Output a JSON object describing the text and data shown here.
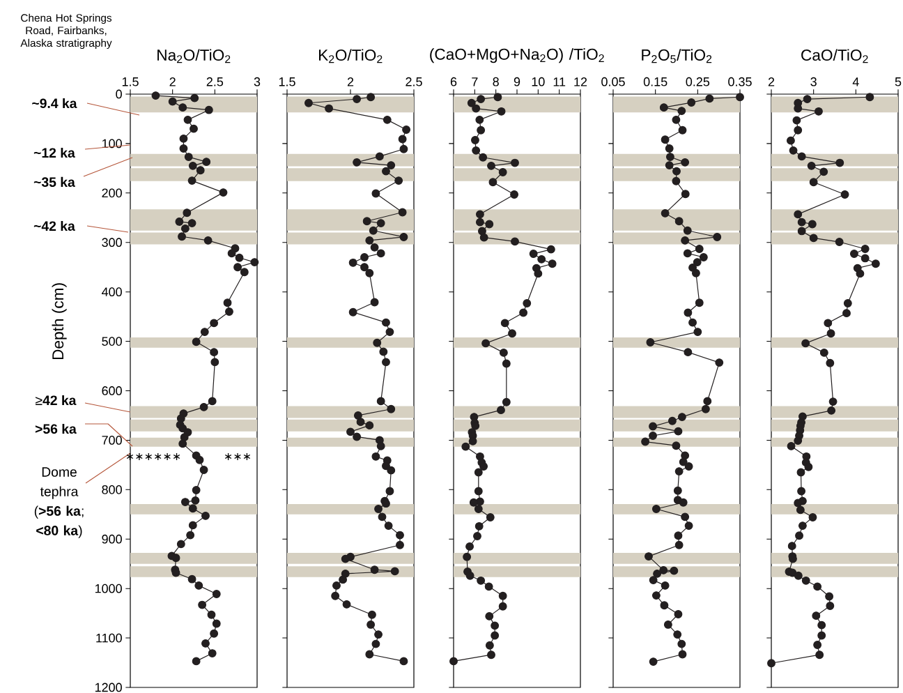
{
  "chart_data": [
    {
      "type": "line",
      "title": "Na$_{2}$O/TiO$_{2}$",
      "ylabel": "Depth (cm)",
      "xlim": [
        1.5,
        3
      ],
      "xticks": [
        1.5,
        2,
        2.5,
        3
      ],
      "ylim": [
        1200,
        0
      ],
      "yticks": [
        0,
        100,
        200,
        300,
        400,
        500,
        600,
        700,
        800,
        900,
        1000,
        1100,
        1200
      ],
      "marker": "circle",
      "line_style": "solid",
      "series": [
        {
          "color": "#231f20",
          "x": [
            1.8,
            2.26,
            2.0,
            2.12,
            2.43,
            2.18,
            2.25,
            2.13,
            2.13,
            2.19,
            2.4,
            2.24,
            2.33,
            2.23,
            2.6,
            2.17,
            2.08,
            2.23,
            2.15,
            2.11,
            2.42,
            2.74,
            2.7,
            2.79,
            2.97,
            2.77,
            2.85,
            2.65,
            2.67,
            2.49,
            2.38,
            2.28,
            2.49,
            2.5,
            2.47,
            2.37,
            2.13,
            2.1,
            2.09,
            2.12,
            2.18,
            2.14,
            2.12,
            2.28,
            2.32,
            2.37,
            2.28,
            2.27,
            2.15,
            2.24,
            2.39,
            2.24,
            2.21,
            2.1,
            1.99,
            2.04,
            2.03,
            2.04,
            2.23,
            2.31,
            2.52,
            2.35,
            2.46,
            2.52,
            2.49,
            2.39,
            2.47,
            2.28
          ],
          "values": [
            3,
            8,
            15,
            27,
            32,
            52,
            70,
            90,
            110,
            127,
            137,
            145,
            154,
            175,
            199,
            240,
            258,
            261,
            272,
            288,
            296,
            312,
            322,
            331,
            340,
            350,
            360,
            422,
            440,
            463,
            481,
            501,
            522,
            542,
            621,
            633,
            646,
            656,
            669,
            676,
            684,
            694,
            707,
            731,
            740,
            760,
            801,
            822,
            825,
            838,
            853,
            872,
            892,
            910,
            934,
            938,
            962,
            968,
            981,
            994,
            1011,
            1033,
            1053,
            1071,
            1091,
            1111,
            1131,
            1147
          ]
        }
      ],
      "bands": [
        {
          "axis": "y",
          "from": 5,
          "to": 37,
          "color": "#d6d0c1"
        },
        {
          "axis": "y",
          "from": 121,
          "to": 146,
          "color": "#d6d0c1"
        },
        {
          "axis": "y",
          "from": 150,
          "to": 176,
          "color": "#d6d0c1"
        },
        {
          "axis": "y",
          "from": 233,
          "to": 276,
          "color": "#d6d0c1"
        },
        {
          "axis": "y",
          "from": 280,
          "to": 304,
          "color": "#d6d0c1"
        },
        {
          "axis": "y",
          "from": 492,
          "to": 513,
          "color": "#d6d0c1"
        },
        {
          "axis": "y",
          "from": 631,
          "to": 655,
          "color": "#d6d0c1"
        },
        {
          "axis": "y",
          "from": 658,
          "to": 682,
          "color": "#d6d0c1"
        },
        {
          "axis": "y",
          "from": 695,
          "to": 713,
          "color": "#d6d0c1"
        },
        {
          "axis": "y",
          "from": 829,
          "to": 850,
          "color": "#d6d0c1"
        },
        {
          "axis": "y",
          "from": 928,
          "to": 950,
          "color": "#d6d0c1"
        },
        {
          "axis": "y",
          "from": 955,
          "to": 977,
          "color": "#d6d0c1"
        }
      ],
      "annotations": [
        "Chena Hot Springs Road, Fairbanks, Alaska stratigraphy",
        "**~9.4 ka**",
        "**~12 ka**",
        "**~35 ka**",
        "**~42 ka**",
        {
          "text": "≥**42 ka**",
          "x": 1.5,
          "y": 643
        },
        "**>56 ka**",
        "Dome tephra (**>56 ka**; **<80 ka**)",
        "∗∗∗∗∗∗",
        "∗∗∗"
      ]
    },
    {
      "type": "line",
      "title": "K$_{2}$O/TiO$_{2}$",
      "xlim": [
        1.5,
        2.5
      ],
      "xticks": [
        1.5,
        2,
        2.5
      ],
      "ylim": [
        1200,
        0
      ],
      "yticks": [
        0,
        100,
        200,
        300,
        400,
        500,
        600,
        700,
        800,
        900,
        1000,
        1100,
        1200
      ],
      "tick_labels": "x",
      "marker": "circle",
      "line_style": "solid",
      "series": [
        {
          "color": "#231f20",
          "x": [
            2.16,
            2.05,
            1.67,
            1.83,
            2.29,
            2.44,
            2.41,
            2.42,
            2.23,
            2.05,
            2.32,
            2.28,
            2.38,
            2.2,
            2.41,
            2.13,
            2.24,
            2.18,
            2.42,
            2.15,
            2.19,
            2.24,
            2.11,
            2.02,
            2.11,
            2.15,
            2.19,
            2.02,
            2.28,
            2.31,
            2.21,
            2.26,
            2.28,
            2.24,
            2.32,
            2.06,
            2.08,
            2.15,
            2.0,
            2.05,
            2.23,
            2.24,
            2.2,
            2.29,
            2.28,
            2.32,
            2.31,
            2.27,
            2.28,
            2.22,
            2.25,
            2.3,
            2.39,
            2.39,
            2.0,
            1.96,
            2.19,
            2.35,
            1.96,
            1.94,
            1.89,
            1.88,
            1.97,
            2.17,
            2.16,
            2.22,
            2.2,
            2.15,
            2.42
          ],
          "values": [
            6,
            10,
            18,
            29,
            52,
            72,
            91,
            111,
            126,
            138,
            144,
            156,
            175,
            201,
            239,
            257,
            261,
            276,
            289,
            296,
            310,
            322,
            330,
            341,
            350,
            362,
            421,
            441,
            462,
            481,
            503,
            521,
            542,
            621,
            637,
            650,
            663,
            670,
            683,
            693,
            700,
            712,
            733,
            741,
            752,
            761,
            803,
            823,
            828,
            839,
            855,
            873,
            892,
            912,
            936,
            940,
            962,
            965,
            970,
            982,
            994,
            1015,
            1032,
            1053,
            1073,
            1093,
            1112,
            1133,
            1147
          ]
        }
      ],
      "bands": [
        {
          "axis": "y",
          "from": 5,
          "to": 37,
          "color": "#d6d0c1"
        },
        {
          "axis": "y",
          "from": 121,
          "to": 146,
          "color": "#d6d0c1"
        },
        {
          "axis": "y",
          "from": 150,
          "to": 176,
          "color": "#d6d0c1"
        },
        {
          "axis": "y",
          "from": 233,
          "to": 276,
          "color": "#d6d0c1"
        },
        {
          "axis": "y",
          "from": 280,
          "to": 304,
          "color": "#d6d0c1"
        },
        {
          "axis": "y",
          "from": 492,
          "to": 513,
          "color": "#d6d0c1"
        },
        {
          "axis": "y",
          "from": 631,
          "to": 655,
          "color": "#d6d0c1"
        },
        {
          "axis": "y",
          "from": 658,
          "to": 682,
          "color": "#d6d0c1"
        },
        {
          "axis": "y",
          "from": 695,
          "to": 713,
          "color": "#d6d0c1"
        },
        {
          "axis": "y",
          "from": 829,
          "to": 850,
          "color": "#d6d0c1"
        },
        {
          "axis": "y",
          "from": 928,
          "to": 950,
          "color": "#d6d0c1"
        },
        {
          "axis": "y",
          "from": 955,
          "to": 977,
          "color": "#d6d0c1"
        }
      ]
    },
    {
      "type": "line",
      "title": "(CaO+MgO+Na$_{2}$O) /TiO$_{2}$",
      "xlim": [
        6,
        12
      ],
      "xticks": [
        6,
        7,
        8,
        9,
        10,
        11,
        12
      ],
      "ylim": [
        1200,
        0
      ],
      "yticks": [
        0,
        100,
        200,
        300,
        400,
        500,
        600,
        700,
        800,
        900,
        1000,
        1100,
        1200
      ],
      "tick_labels": "x",
      "marker": "circle",
      "line_style": "solid",
      "series": [
        {
          "color": "#231f20",
          "x": [
            8.09,
            7.29,
            6.85,
            7.06,
            8.26,
            7.23,
            7.29,
            7.02,
            7.06,
            7.39,
            8.9,
            7.78,
            8.33,
            7.86,
            8.87,
            7.25,
            7.25,
            7.69,
            7.35,
            7.44,
            8.9,
            10.61,
            9.78,
            10.16,
            10.67,
            9.92,
            10.0,
            9.47,
            9.3,
            8.43,
            8.77,
            7.52,
            8.37,
            8.5,
            8.5,
            8.24,
            6.97,
            7.0,
            7.03,
            6.87,
            6.91,
            6.91,
            6.57,
            7.25,
            7.33,
            7.42,
            7.18,
            7.18,
            7.25,
            6.95,
            7.18,
            7.74,
            7.21,
            7.12,
            6.76,
            6.63,
            6.66,
            6.78,
            7.29,
            7.67,
            8.33,
            8.33,
            7.69,
            7.95,
            7.95,
            7.71,
            7.78,
            6.0
          ],
          "values": [
            6,
            10,
            18,
            29,
            35,
            52,
            73,
            93,
            114,
            128,
            139,
            145,
            158,
            178,
            203,
            243,
            259,
            263,
            277,
            290,
            298,
            314,
            323,
            334,
            343,
            352,
            363,
            423,
            442,
            463,
            484,
            504,
            523,
            545,
            623,
            639,
            653,
            665,
            671,
            684,
            691,
            702,
            713,
            733,
            745,
            753,
            765,
            803,
            824,
            826,
            839,
            856,
            874,
            894,
            915,
            936,
            966,
            974,
            984,
            996,
            1015,
            1036,
            1056,
            1075,
            1095,
            1115,
            1134,
            1147
          ]
        }
      ],
      "bands": [
        {
          "axis": "y",
          "from": 5,
          "to": 37,
          "color": "#d6d0c1"
        },
        {
          "axis": "y",
          "from": 121,
          "to": 146,
          "color": "#d6d0c1"
        },
        {
          "axis": "y",
          "from": 150,
          "to": 176,
          "color": "#d6d0c1"
        },
        {
          "axis": "y",
          "from": 233,
          "to": 276,
          "color": "#d6d0c1"
        },
        {
          "axis": "y",
          "from": 280,
          "to": 304,
          "color": "#d6d0c1"
        },
        {
          "axis": "y",
          "from": 492,
          "to": 513,
          "color": "#d6d0c1"
        },
        {
          "axis": "y",
          "from": 631,
          "to": 655,
          "color": "#d6d0c1"
        },
        {
          "axis": "y",
          "from": 658,
          "to": 682,
          "color": "#d6d0c1"
        },
        {
          "axis": "y",
          "from": 695,
          "to": 713,
          "color": "#d6d0c1"
        },
        {
          "axis": "y",
          "from": 829,
          "to": 850,
          "color": "#d6d0c1"
        },
        {
          "axis": "y",
          "from": 928,
          "to": 950,
          "color": "#d6d0c1"
        },
        {
          "axis": "y",
          "from": 955,
          "to": 977,
          "color": "#d6d0c1"
        }
      ]
    },
    {
      "type": "line",
      "title": "P$_{2}$O$_{5}$/TiO$_{2}$",
      "xlim": [
        0.05,
        0.35
      ],
      "xticks": [
        0.05,
        0.15,
        0.25,
        0.35
      ],
      "ylim": [
        1200,
        0
      ],
      "yticks": [
        0,
        100,
        200,
        300,
        400,
        500,
        600,
        700,
        800,
        900,
        1000,
        1100,
        1200
      ],
      "tick_labels": "x",
      "marker": "circle",
      "line_style": "solid",
      "series": [
        {
          "color": "#231f20",
          "x": [
            0.35,
            0.278,
            0.235,
            0.17,
            0.212,
            0.199,
            0.214,
            0.173,
            0.183,
            0.185,
            0.22,
            0.183,
            0.2,
            0.199,
            0.221,
            0.173,
            0.206,
            0.226,
            0.296,
            0.22,
            0.254,
            0.226,
            0.264,
            0.249,
            0.238,
            0.246,
            0.254,
            0.227,
            0.238,
            0.25,
            0.138,
            0.227,
            0.301,
            0.273,
            0.269,
            0.213,
            0.19,
            0.144,
            0.204,
            0.144,
            0.126,
            0.199,
            0.22,
            0.216,
            0.229,
            0.206,
            0.203,
            0.203,
            0.216,
            0.152,
            0.22,
            0.229,
            0.204,
            0.206,
            0.134,
            0.169,
            0.194,
            0.154,
            0.145,
            0.173,
            0.152,
            0.171,
            0.204,
            0.18,
            0.202,
            0.212,
            0.214,
            0.145
          ],
          "values": [
            6,
            9,
            17,
            27,
            34,
            52,
            73,
            92,
            110,
            127,
            138,
            144,
            156,
            176,
            202,
            241,
            257,
            276,
            289,
            296,
            313,
            322,
            330,
            340,
            351,
            362,
            422,
            442,
            462,
            481,
            502,
            522,
            543,
            621,
            637,
            653,
            661,
            672,
            682,
            691,
            703,
            711,
            731,
            744,
            753,
            763,
            802,
            821,
            826,
            839,
            855,
            873,
            893,
            912,
            935,
            963,
            964,
            970,
            983,
            994,
            1014,
            1034,
            1052,
            1073,
            1093,
            1112,
            1133,
            1148
          ]
        }
      ],
      "bands": [
        {
          "axis": "y",
          "from": 5,
          "to": 37,
          "color": "#d6d0c1"
        },
        {
          "axis": "y",
          "from": 121,
          "to": 146,
          "color": "#d6d0c1"
        },
        {
          "axis": "y",
          "from": 150,
          "to": 176,
          "color": "#d6d0c1"
        },
        {
          "axis": "y",
          "from": 233,
          "to": 276,
          "color": "#d6d0c1"
        },
        {
          "axis": "y",
          "from": 280,
          "to": 304,
          "color": "#d6d0c1"
        },
        {
          "axis": "y",
          "from": 492,
          "to": 513,
          "color": "#d6d0c1"
        },
        {
          "axis": "y",
          "from": 631,
          "to": 655,
          "color": "#d6d0c1"
        },
        {
          "axis": "y",
          "from": 658,
          "to": 682,
          "color": "#d6d0c1"
        },
        {
          "axis": "y",
          "from": 695,
          "to": 713,
          "color": "#d6d0c1"
        },
        {
          "axis": "y",
          "from": 829,
          "to": 850,
          "color": "#d6d0c1"
        },
        {
          "axis": "y",
          "from": 928,
          "to": 950,
          "color": "#d6d0c1"
        },
        {
          "axis": "y",
          "from": 955,
          "to": 977,
          "color": "#d6d0c1"
        }
      ]
    },
    {
      "type": "line",
      "title": "CaO/TiO$_{2}$",
      "xlim": [
        2,
        5
      ],
      "xticks": [
        2,
        3,
        4,
        5
      ],
      "ylim": [
        1200,
        0
      ],
      "yticks": [
        0,
        100,
        200,
        300,
        400,
        500,
        600,
        700,
        800,
        900,
        1000,
        1100,
        1200
      ],
      "tick_labels": "x",
      "marker": "circle",
      "line_style": "solid",
      "series": [
        {
          "color": "#231f20",
          "x": [
            4.33,
            2.85,
            2.63,
            2.63,
            3.12,
            2.6,
            2.63,
            2.46,
            2.52,
            2.72,
            3.62,
            2.95,
            3.24,
            3.0,
            3.74,
            2.63,
            2.72,
            2.97,
            2.72,
            3.0,
            3.61,
            4.22,
            3.96,
            4.22,
            4.47,
            4.04,
            4.1,
            3.81,
            3.78,
            3.34,
            3.41,
            2.81,
            3.25,
            3.39,
            3.46,
            3.42,
            2.74,
            2.71,
            2.69,
            2.68,
            2.66,
            2.63,
            2.47,
            2.83,
            2.82,
            2.88,
            2.7,
            2.71,
            2.74,
            2.63,
            2.69,
            2.98,
            2.74,
            2.66,
            2.49,
            2.5,
            2.51,
            2.42,
            2.5,
            2.64,
            2.82,
            3.09,
            3.37,
            3.39,
            3.06,
            3.19,
            3.19,
            3.09,
            3.14,
            2.0
          ],
          "values": [
            6,
            10,
            18,
            29,
            35,
            53,
            73,
            94,
            114,
            126,
            139,
            145,
            157,
            178,
            203,
            243,
            259,
            263,
            277,
            291,
            299,
            313,
            323,
            332,
            343,
            352,
            363,
            423,
            443,
            463,
            484,
            504,
            523,
            544,
            622,
            640,
            652,
            664,
            671,
            680,
            691,
            701,
            712,
            733,
            745,
            754,
            765,
            803,
            823,
            827,
            841,
            856,
            873,
            893,
            914,
            935,
            940,
            966,
            968,
            974,
            984,
            996,
            1016,
            1035,
            1055,
            1074,
            1095,
            1114,
            1134,
            1151
          ]
        }
      ],
      "bands": [
        {
          "axis": "y",
          "from": 5,
          "to": 37,
          "color": "#d6d0c1"
        },
        {
          "axis": "y",
          "from": 121,
          "to": 146,
          "color": "#d6d0c1"
        },
        {
          "axis": "y",
          "from": 150,
          "to": 176,
          "color": "#d6d0c1"
        },
        {
          "axis": "y",
          "from": 233,
          "to": 276,
          "color": "#d6d0c1"
        },
        {
          "axis": "y",
          "from": 280,
          "to": 304,
          "color": "#d6d0c1"
        },
        {
          "axis": "y",
          "from": 492,
          "to": 513,
          "color": "#d6d0c1"
        },
        {
          "axis": "y",
          "from": 631,
          "to": 655,
          "color": "#d6d0c1"
        },
        {
          "axis": "y",
          "from": 658,
          "to": 682,
          "color": "#d6d0c1"
        },
        {
          "axis": "y",
          "from": 695,
          "to": 713,
          "color": "#d6d0c1"
        },
        {
          "axis": "y",
          "from": 829,
          "to": 850,
          "color": "#d6d0c1"
        },
        {
          "axis": "y",
          "from": 928,
          "to": 950,
          "color": "#d6d0c1"
        },
        {
          "axis": "y",
          "from": 955,
          "to": 977,
          "color": "#d6d0c1"
        }
      ]
    }
  ]
}
